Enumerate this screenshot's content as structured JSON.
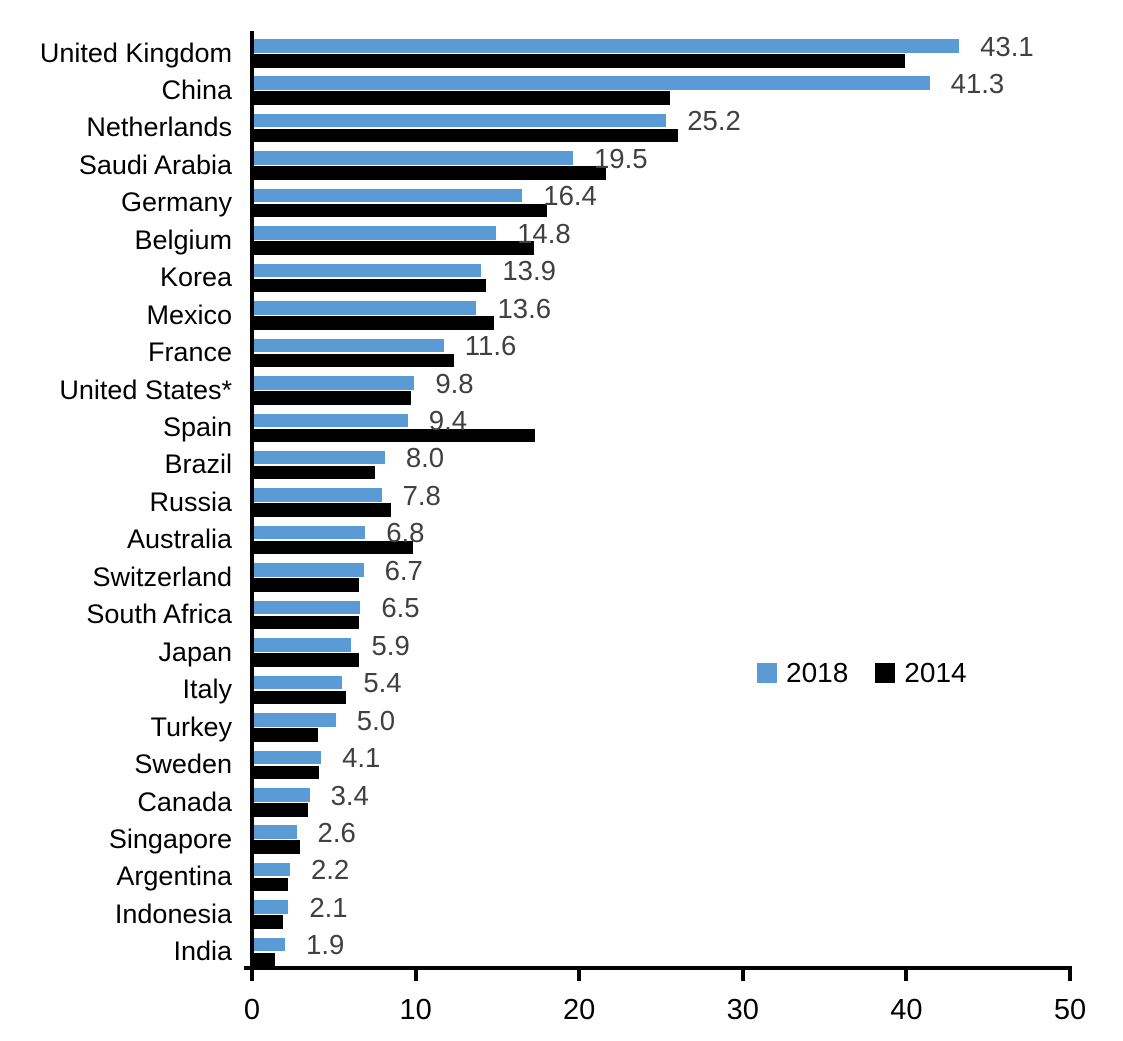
{
  "chart_data": {
    "type": "bar",
    "orientation": "horizontal",
    "title": "",
    "xlabel": "",
    "ylabel": "",
    "xlim": [
      0,
      50
    ],
    "x_ticks": [
      0,
      10,
      20,
      30,
      40,
      50
    ],
    "grid": false,
    "legend_position": "middle-right",
    "categories": [
      "United Kingdom",
      "China",
      "Netherlands",
      "Saudi Arabia",
      "Germany",
      "Belgium",
      "Korea",
      "Mexico",
      "France",
      "United States*",
      "Spain",
      "Brazil",
      "Russia",
      "Australia",
      "Switzerland",
      "South Africa",
      "Japan",
      "Italy",
      "Turkey",
      "Sweden",
      "Canada",
      "Singapore",
      "Argentina",
      "Indonesia",
      "India"
    ],
    "series": [
      {
        "name": "2018",
        "color": "#5B9BD5",
        "values": [
          43.1,
          41.3,
          25.2,
          19.5,
          16.4,
          14.8,
          13.9,
          13.6,
          11.6,
          9.8,
          9.4,
          8.0,
          7.8,
          6.8,
          6.7,
          6.5,
          5.9,
          5.4,
          5.0,
          4.1,
          3.4,
          2.6,
          2.2,
          2.1,
          1.9
        ],
        "data_labels_visible": true
      },
      {
        "name": "2014",
        "color": "#000000",
        "values": [
          39.8,
          25.4,
          25.9,
          21.5,
          17.9,
          17.1,
          14.2,
          14.7,
          12.2,
          9.6,
          17.2,
          7.4,
          8.4,
          9.7,
          6.4,
          6.4,
          6.4,
          5.6,
          3.9,
          4.0,
          3.3,
          2.8,
          2.1,
          1.8,
          1.3
        ],
        "data_labels_visible": false
      }
    ],
    "data_label_color": "#404040",
    "axis_color": "#000000"
  }
}
